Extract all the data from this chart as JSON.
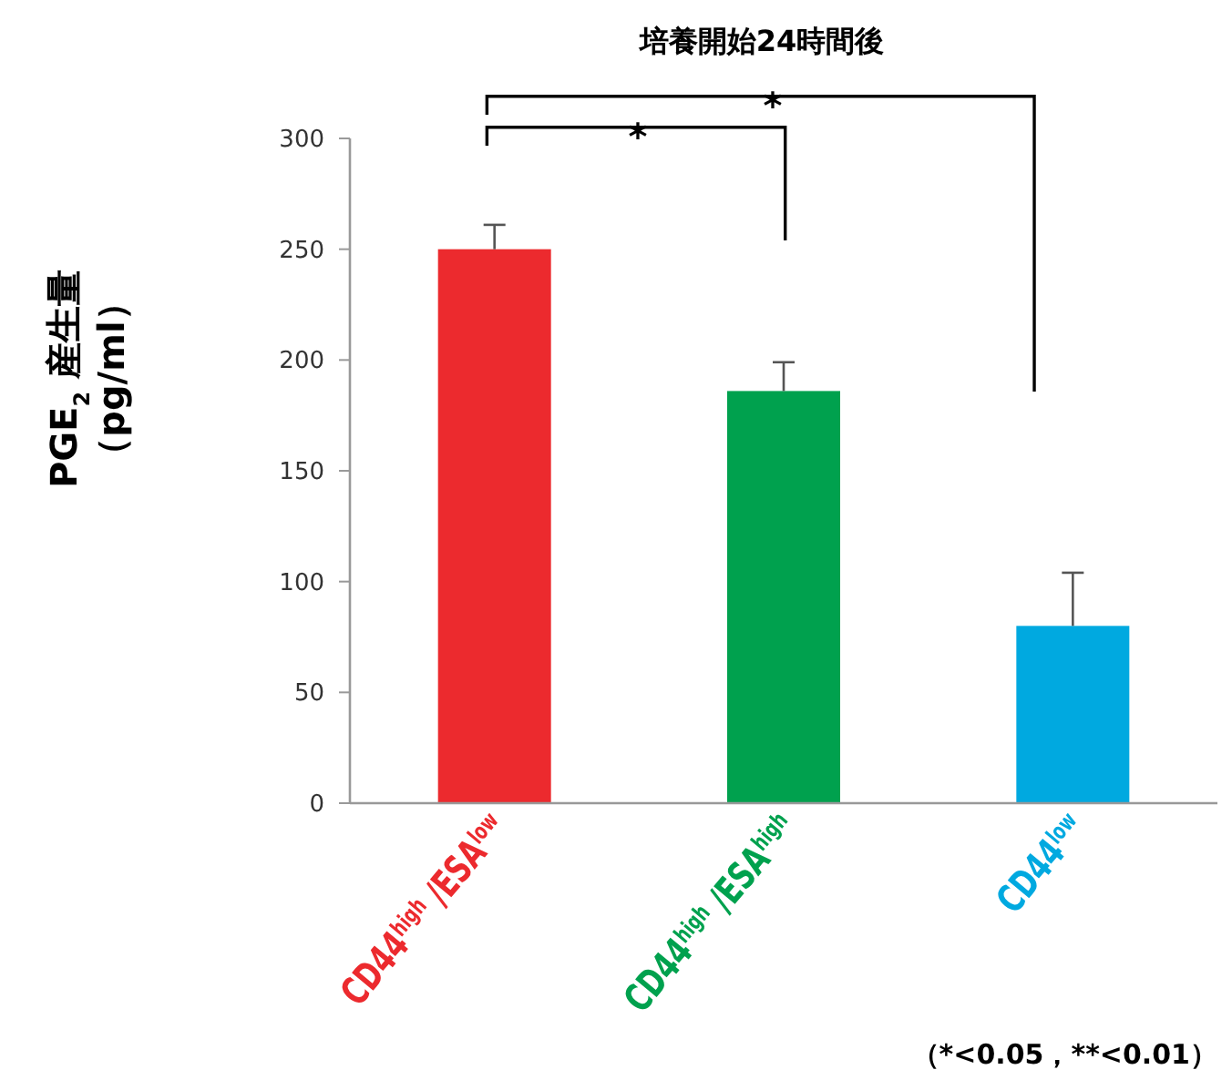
{
  "chart_data": {
    "type": "bar",
    "title": "培養開始24時間後",
    "ylabel": "PGE$_{2}$ 産生量（pg/ml）",
    "categories": [
      "CD44$^{high}$ /ESA$^{low}$",
      "CD44$^{high}$ /ESA$^{high}$",
      "CD44$^{low}$"
    ],
    "values": [
      250,
      186,
      80
    ],
    "colors": [
      "#ec2a2e",
      "#00a14e",
      "#00a9e0"
    ],
    "errors": [
      [
        250,
        261
      ],
      [
        186,
        199
      ],
      [
        80,
        104
      ]
    ],
    "ylim": [
      0,
      300
    ],
    "yticks": [
      0,
      50,
      100,
      150,
      200,
      250,
      300
    ],
    "annotations": [
      "*",
      "*",
      "（*<0.05，**<0.01）"
    ]
  }
}
